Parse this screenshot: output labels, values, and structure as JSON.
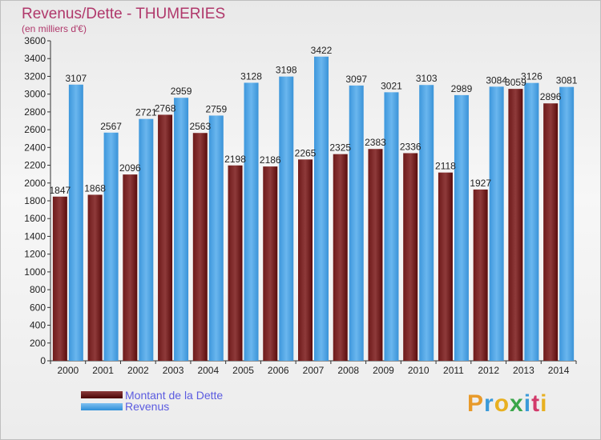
{
  "header": {
    "title": "Revenus/Dette - THUMERIES",
    "subtitle": "(en milliers d'€)"
  },
  "legend": {
    "debt_label": "Montant de la Dette",
    "revenue_label": "Revenus"
  },
  "logo": {
    "text": "Proxiti",
    "letter_colors": [
      "#e89a2a",
      "#3a9ad9",
      "#e8b020",
      "#3aa64a",
      "#3a9ad9",
      "#d23a6a",
      "#e8b020"
    ]
  },
  "colors": {
    "debt_top": "#8b3a3a",
    "debt_bottom": "#4a0606",
    "revenue_top": "#7fc0f0",
    "revenue_bottom": "#2e8fd8",
    "title": "#b0386b"
  },
  "chart_data": {
    "type": "bar",
    "title": "Revenus/Dette - THUMERIES",
    "subtitle": "(en milliers d'€)",
    "xlabel": "",
    "ylabel": "",
    "ylim": [
      0,
      3600
    ],
    "ytick_step": 200,
    "grid": false,
    "legend_position": "bottom-left",
    "categories": [
      "2000",
      "2001",
      "2002",
      "2003",
      "2004",
      "2005",
      "2006",
      "2007",
      "2008",
      "2009",
      "2010",
      "2011",
      "2012",
      "2013",
      "2014"
    ],
    "series": [
      {
        "name": "Montant de la Dette",
        "values": [
          1847,
          1868,
          2096,
          2768,
          2563,
          2198,
          2186,
          2265,
          2325,
          2383,
          2336,
          2118,
          1927,
          3059,
          2896
        ],
        "labels": [
          "1847",
          "1868",
          "2096",
          "2768",
          "2563",
          "2198",
          "2186",
          "2265",
          "2325",
          "2383",
          "2336",
          "2118",
          "1927",
          "3059",
          "2896"
        ]
      },
      {
        "name": "Revenus",
        "values": [
          3107,
          2567,
          2721,
          2959,
          2759,
          3128,
          3198,
          3422,
          3097,
          3021,
          3103,
          2989,
          3084,
          3126,
          3081
        ],
        "labels": [
          "3107",
          "2567",
          "2721",
          "2959",
          "2759",
          "3128",
          "3198",
          "3422",
          "3097",
          "3021",
          "3103",
          "2989",
          "3084",
          "3126",
          "3081"
        ]
      }
    ]
  }
}
